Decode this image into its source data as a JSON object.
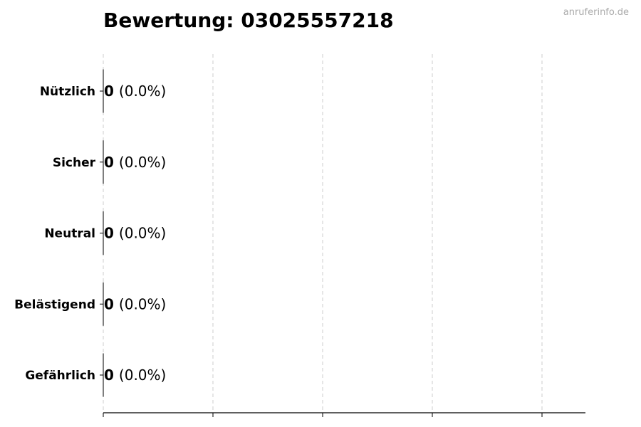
{
  "chart_data": {
    "type": "bar",
    "orientation": "horizontal",
    "title": "Bewertung: 03025557218",
    "categories": [
      "Nützlich",
      "Sicher",
      "Neutral",
      "Belästigend",
      "Gefährlich"
    ],
    "values": [
      0,
      0,
      0,
      0,
      0
    ],
    "data_labels": [
      {
        "count": "0",
        "percent": "(0.0%)"
      },
      {
        "count": "0",
        "percent": "(0.0%)"
      },
      {
        "count": "0",
        "percent": "(0.0%)"
      },
      {
        "count": "0",
        "percent": "(0.0%)"
      },
      {
        "count": "0",
        "percent": "(0.0%)"
      }
    ],
    "xlabel": "",
    "ylabel": "",
    "x_tick_labels": [],
    "grid": "vertical dashed",
    "legend": "none",
    "bar_edge_color": "#000000",
    "grid_color": "#cccccc"
  },
  "watermark": "anruferinfo.de"
}
